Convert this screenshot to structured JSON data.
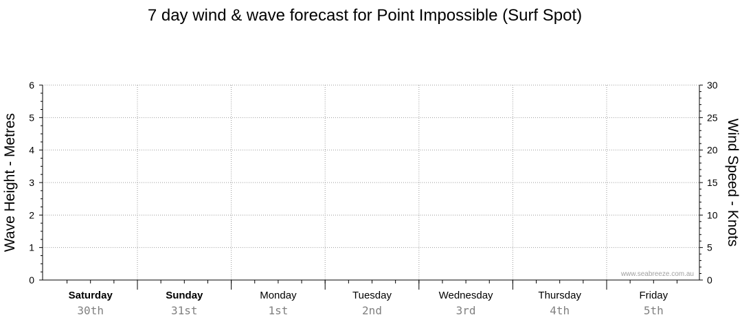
{
  "chart_data": {
    "type": "line",
    "title": "7 day wind & wave forecast for Point Impossible  (Surf Spot)",
    "ylabel_left": "Wave Height - Metres",
    "ylabel_right": "Wind Speed - Knots",
    "ylim_left": [
      0,
      6
    ],
    "ylim_right": [
      0,
      30
    ],
    "yticks_left": [
      "0",
      "1",
      "2",
      "3",
      "4",
      "5",
      "6"
    ],
    "yticks_right": [
      "0",
      "5",
      "10",
      "15",
      "20",
      "25",
      "30"
    ],
    "grid": true,
    "days": [
      {
        "day": "Saturday",
        "date": "30th",
        "bold": true
      },
      {
        "day": "Sunday",
        "date": "31st",
        "bold": true
      },
      {
        "day": "Monday",
        "date": "1st",
        "bold": false
      },
      {
        "day": "Tuesday",
        "date": "2nd",
        "bold": false
      },
      {
        "day": "Wednesday",
        "date": "3rd",
        "bold": false
      },
      {
        "day": "Thursday",
        "date": "4th",
        "bold": false
      },
      {
        "day": "Friday",
        "date": "5th",
        "bold": false
      }
    ],
    "series": [],
    "watermark": "www.seabreeze.com.au"
  }
}
